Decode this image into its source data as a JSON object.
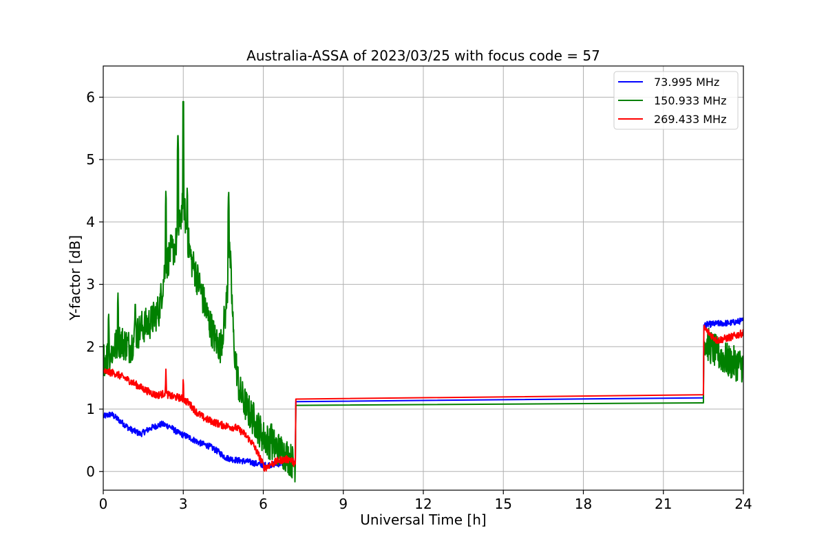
{
  "chart_data": {
    "type": "line",
    "title": "Australia-ASSA of 2023/03/25 with focus code = 57",
    "xlabel": "Universal Time [h]",
    "ylabel": "Y-factor [dB]",
    "xlim": [
      0,
      24
    ],
    "ylim": [
      -0.3,
      6.5
    ],
    "xticks": [
      0,
      3,
      6,
      9,
      12,
      15,
      18,
      21,
      24
    ],
    "yticks": [
      0,
      1,
      2,
      3,
      4,
      5,
      6
    ],
    "grid": true,
    "legend_position": "top-right",
    "series": [
      {
        "name": "  73.995 MHz",
        "color": "#0000ff",
        "x": [
          0,
          0.3,
          0.6,
          1.0,
          1.4,
          1.8,
          2.2,
          2.5,
          2.8,
          3.2,
          3.6,
          4.0,
          4.3,
          4.6,
          5.0,
          5.4,
          5.8,
          6.1,
          6.5,
          6.9,
          7.2,
          7.22,
          22.5,
          22.52,
          23.0,
          23.5,
          24.0
        ],
        "y": [
          0.88,
          0.92,
          0.82,
          0.68,
          0.6,
          0.7,
          0.76,
          0.72,
          0.62,
          0.55,
          0.46,
          0.4,
          0.32,
          0.22,
          0.18,
          0.16,
          0.12,
          0.1,
          0.12,
          0.14,
          0.12,
          1.12,
          1.18,
          2.35,
          2.37,
          2.38,
          2.42
        ],
        "noise": 0.05
      },
      {
        "name": "150.933 MHz",
        "color": "#008000",
        "x": [
          0,
          0.3,
          0.6,
          1.0,
          1.4,
          1.8,
          2.1,
          2.3,
          2.5,
          2.7,
          2.9,
          3.0,
          3.1,
          3.3,
          3.6,
          3.9,
          4.2,
          4.4,
          4.6,
          4.75,
          4.9,
          5.1,
          5.4,
          5.7,
          6.0,
          6.3,
          6.6,
          6.9,
          7.2,
          7.22,
          22.5,
          22.52,
          23.0,
          23.5,
          24.0
        ],
        "y": [
          1.8,
          1.9,
          2.1,
          2.0,
          2.3,
          2.4,
          2.6,
          3.2,
          3.5,
          3.6,
          4.0,
          4.5,
          3.9,
          3.4,
          3.0,
          2.5,
          2.1,
          2.0,
          2.6,
          3.5,
          2.0,
          1.3,
          1.0,
          0.8,
          0.55,
          0.45,
          0.35,
          0.25,
          0.1,
          1.06,
          1.1,
          2.1,
          1.9,
          1.75,
          1.7
        ],
        "noise": 0.28,
        "spikes": [
          [
            0.2,
            2.6
          ],
          [
            0.55,
            2.9
          ],
          [
            1.2,
            2.8
          ],
          [
            2.35,
            4.55
          ],
          [
            2.8,
            5.5
          ],
          [
            3.0,
            6.18
          ],
          [
            3.15,
            4.6
          ],
          [
            4.7,
            4.55
          ],
          [
            6.3,
            1.0
          ]
        ]
      },
      {
        "name": "269.433 MHz",
        "color": "#ff0000",
        "x": [
          0,
          0.4,
          0.8,
          1.2,
          1.6,
          2.0,
          2.3,
          2.6,
          2.9,
          3.2,
          3.5,
          3.8,
          4.1,
          4.4,
          4.7,
          5.0,
          5.3,
          5.6,
          5.9,
          6.05,
          6.3,
          6.6,
          7.0,
          7.2,
          7.22,
          22.5,
          22.52,
          23.0,
          23.5,
          24.0
        ],
        "y": [
          1.6,
          1.58,
          1.5,
          1.4,
          1.3,
          1.22,
          1.25,
          1.2,
          1.18,
          1.1,
          0.95,
          0.85,
          0.8,
          0.75,
          0.72,
          0.7,
          0.6,
          0.45,
          0.2,
          0.05,
          0.12,
          0.18,
          0.2,
          0.12,
          1.16,
          1.23,
          2.3,
          2.1,
          2.15,
          2.22
        ],
        "noise": 0.06,
        "spikes": [
          [
            2.35,
            1.68
          ],
          [
            3.0,
            1.55
          ]
        ]
      }
    ]
  }
}
